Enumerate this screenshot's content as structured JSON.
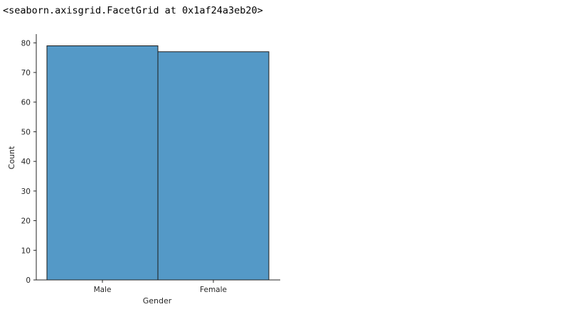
{
  "output_repr": "<seaborn.axisgrid.FacetGrid at 0x1af24a3eb20>",
  "chart_data": {
    "type": "bar",
    "categories": [
      "Male",
      "Female"
    ],
    "values": [
      79,
      77
    ],
    "xlabel": "Gender",
    "ylabel": "Count",
    "ylim": [
      0,
      82.95
    ],
    "yticks": [
      0,
      10,
      20,
      30,
      40,
      50,
      60,
      70,
      80
    ],
    "grid": false,
    "bar_color": "#5499c7",
    "edge_color": "#1a1a1a"
  }
}
